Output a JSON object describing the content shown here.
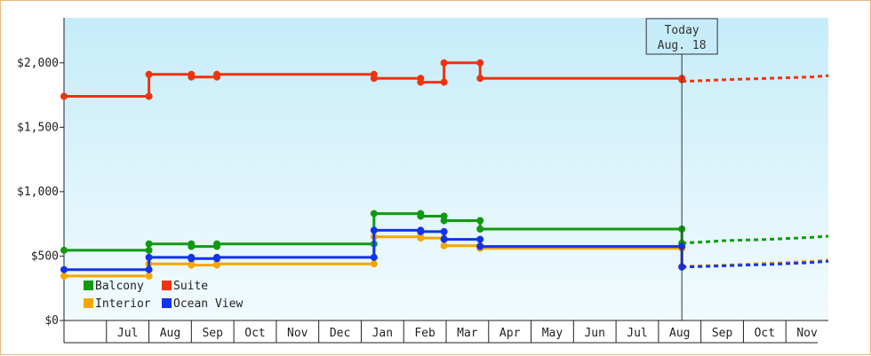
{
  "chart_data": {
    "type": "line",
    "title": "",
    "xlabel": "",
    "ylabel": "",
    "ylim": [
      0,
      2350
    ],
    "y_ticks": [
      {
        "value": 0,
        "label": "$0"
      },
      {
        "value": 500,
        "label": "$500"
      },
      {
        "value": 1000,
        "label": "$1,000"
      },
      {
        "value": 1500,
        "label": "$1,500"
      },
      {
        "value": 2000,
        "label": "$2,000"
      }
    ],
    "x_months": [
      {
        "label": "",
        "start": 0
      },
      {
        "label": "Jul",
        "start": 1
      },
      {
        "label": "Aug",
        "start": 2
      },
      {
        "label": "Sep",
        "start": 3
      },
      {
        "label": "Oct",
        "start": 4
      },
      {
        "label": "Nov",
        "start": 5
      },
      {
        "label": "Dec",
        "start": 6
      },
      {
        "label": "Jan",
        "start": 7
      },
      {
        "label": "Feb",
        "start": 8
      },
      {
        "label": "Mar",
        "start": 9
      },
      {
        "label": "Apr",
        "start": 10
      },
      {
        "label": "May",
        "start": 11
      },
      {
        "label": "Jun",
        "start": 12
      },
      {
        "label": "Jul",
        "start": 13
      },
      {
        "label": "Aug",
        "start": 14
      },
      {
        "label": "Sep",
        "start": 15
      },
      {
        "label": "Oct",
        "start": 16
      },
      {
        "label": "Nov",
        "start": 17
      }
    ],
    "xlim": [
      0,
      18
    ],
    "grid": false,
    "legend_position": "bottom-left",
    "today": {
      "line1": "Today",
      "line2": "Aug. 18",
      "x": 14.55
    },
    "series": [
      {
        "name": "Balcony",
        "color": "#119911",
        "points": [
          [
            0.0,
            545
          ],
          [
            2.0,
            545
          ],
          [
            2.0,
            595
          ],
          [
            3.0,
            595
          ],
          [
            3.0,
            575
          ],
          [
            3.6,
            575
          ],
          [
            3.6,
            595
          ],
          [
            7.3,
            595
          ],
          [
            7.3,
            830
          ],
          [
            8.4,
            830
          ],
          [
            8.4,
            810
          ],
          [
            8.95,
            810
          ],
          [
            8.95,
            775
          ],
          [
            9.8,
            775
          ],
          [
            9.8,
            710
          ],
          [
            14.55,
            710
          ],
          [
            14.55,
            600
          ]
        ],
        "forecast": [
          [
            14.55,
            600
          ],
          [
            15.6,
            620
          ],
          [
            16.6,
            630
          ],
          [
            17.6,
            645
          ],
          [
            18.0,
            655
          ]
        ]
      },
      {
        "name": "Suite",
        "color": "#ee3311",
        "points": [
          [
            0.0,
            1740
          ],
          [
            2.0,
            1740
          ],
          [
            2.0,
            1910
          ],
          [
            3.0,
            1910
          ],
          [
            3.0,
            1890
          ],
          [
            3.6,
            1890
          ],
          [
            3.6,
            1910
          ],
          [
            7.3,
            1910
          ],
          [
            7.3,
            1880
          ],
          [
            8.4,
            1880
          ],
          [
            8.4,
            1850
          ],
          [
            8.95,
            1850
          ],
          [
            8.95,
            2000
          ],
          [
            9.8,
            2000
          ],
          [
            9.8,
            1880
          ],
          [
            14.55,
            1880
          ],
          [
            14.55,
            1870
          ]
        ],
        "forecast": [
          [
            14.55,
            1855
          ],
          [
            15.6,
            1870
          ],
          [
            16.6,
            1880
          ],
          [
            17.6,
            1890
          ],
          [
            18.0,
            1900
          ]
        ]
      },
      {
        "name": "Interior",
        "color": "#f5a600",
        "points": [
          [
            0.0,
            345
          ],
          [
            2.0,
            345
          ],
          [
            2.0,
            440
          ],
          [
            3.0,
            440
          ],
          [
            3.0,
            430
          ],
          [
            3.6,
            430
          ],
          [
            3.6,
            440
          ],
          [
            7.3,
            440
          ],
          [
            7.3,
            650
          ],
          [
            8.4,
            650
          ],
          [
            8.4,
            640
          ],
          [
            8.95,
            640
          ],
          [
            8.95,
            580
          ],
          [
            9.8,
            580
          ],
          [
            9.8,
            560
          ],
          [
            14.55,
            560
          ],
          [
            14.55,
            420
          ]
        ],
        "forecast": [
          [
            14.55,
            420
          ],
          [
            15.6,
            430
          ],
          [
            16.6,
            445
          ],
          [
            17.6,
            460
          ],
          [
            18.0,
            470
          ]
        ]
      },
      {
        "name": "Ocean View",
        "color": "#1133ee",
        "points": [
          [
            0.0,
            395
          ],
          [
            2.0,
            395
          ],
          [
            2.0,
            490
          ],
          [
            3.0,
            490
          ],
          [
            3.0,
            480
          ],
          [
            3.6,
            480
          ],
          [
            3.6,
            490
          ],
          [
            7.3,
            490
          ],
          [
            7.3,
            700
          ],
          [
            8.4,
            700
          ],
          [
            8.4,
            690
          ],
          [
            8.95,
            690
          ],
          [
            8.95,
            630
          ],
          [
            9.8,
            630
          ],
          [
            9.8,
            575
          ],
          [
            14.55,
            575
          ],
          [
            14.55,
            415
          ]
        ],
        "forecast": [
          [
            14.55,
            415
          ],
          [
            15.6,
            425
          ],
          [
            16.6,
            435
          ],
          [
            17.6,
            450
          ],
          [
            18.0,
            460
          ]
        ]
      }
    ],
    "legend_order": [
      "Balcony",
      "Suite",
      "Interior",
      "Ocean View"
    ]
  }
}
